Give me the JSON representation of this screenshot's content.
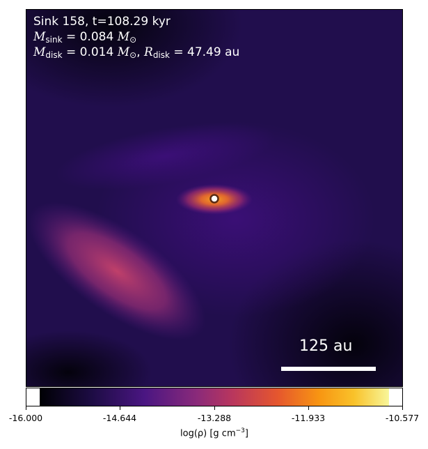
{
  "panel": {
    "sink_line": "Sink 158, t=108.29 kyr",
    "msink": {
      "symbol": "M",
      "sub": "sink",
      "rest": " = 0.084 ",
      "unit_symbol": "M",
      "unit_sub": "⊙"
    },
    "mdisk": {
      "symbol": "M",
      "sub": "disk",
      "rest": " = 0.014 ",
      "unit_symbol": "M",
      "unit_sub": "⊙",
      "sep": ", ",
      "rsymbol": "R",
      "rsub": "disk",
      "rrest": " = 47.49 au"
    },
    "scale_label": "125 au"
  },
  "colorbar": {
    "ticks": [
      "-16.000",
      "-14.644",
      "-13.288",
      "-11.933",
      "-10.577"
    ],
    "label_main": "log(ρ) [g cm",
    "label_exp": "−3",
    "label_end": "]",
    "colormap": "plasma-like (black → purple → red → orange → yellow)"
  },
  "colors": {
    "background": "#1e0e46",
    "filament": "#b83c62",
    "hot": "#f48a1c",
    "sink_marker_fill": "#ffffff",
    "sink_marker_edge": "#5a2a14"
  }
}
